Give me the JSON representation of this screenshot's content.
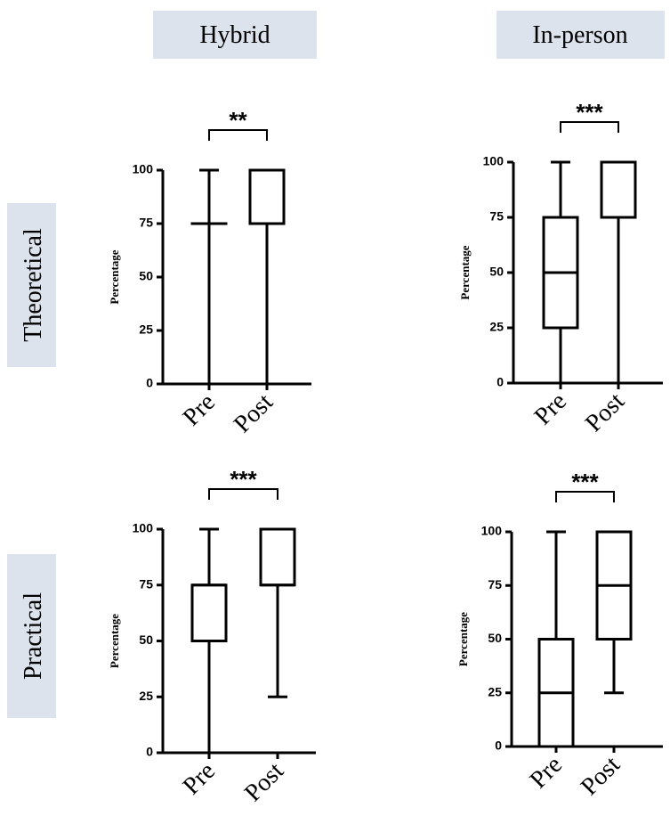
{
  "columns": [
    "Hybrid",
    "In-person"
  ],
  "rows": [
    "Theoretical",
    "Practical"
  ],
  "chart_data": [
    {
      "type": "box",
      "ylabel": "Percentage",
      "annotation": "**",
      "categories": [
        "Pre",
        "Post"
      ],
      "boxes": [
        {
          "min": 0,
          "q1": 75,
          "median": 75,
          "q3": 75,
          "max": 100
        },
        {
          "min": 0,
          "q1": 75,
          "median": 75,
          "q3": 100,
          "max": 100
        }
      ],
      "ylim": [
        0,
        100
      ],
      "yticks": [
        0,
        25,
        50,
        75,
        100
      ],
      "color": "#000000"
    },
    {
      "type": "box",
      "ylabel": "Percentage",
      "annotation": "***",
      "categories": [
        "Pre",
        "Post"
      ],
      "boxes": [
        {
          "min": 0,
          "q1": 25,
          "median": 50,
          "q3": 75,
          "max": 100
        },
        {
          "min": 0,
          "q1": 75,
          "median": 75,
          "q3": 100,
          "max": 100
        }
      ],
      "ylim": [
        0,
        100
      ],
      "yticks": [
        0,
        25,
        50,
        75,
        100
      ],
      "color": "#000000"
    },
    {
      "type": "box",
      "ylabel": "Percentage",
      "annotation": "***",
      "categories": [
        "Pre",
        "Post"
      ],
      "boxes": [
        {
          "min": 0,
          "q1": 50,
          "median": 75,
          "q3": 75,
          "max": 100
        },
        {
          "min": 25,
          "q1": 75,
          "median": 75,
          "q3": 100,
          "max": 100
        }
      ],
      "ylim": [
        0,
        100
      ],
      "yticks": [
        0,
        25,
        50,
        75,
        100
      ],
      "color": "#000000"
    },
    {
      "type": "box",
      "ylabel": "Percentage",
      "annotation": "***",
      "categories": [
        "Pre",
        "Post"
      ],
      "boxes": [
        {
          "min": 0,
          "q1": 0,
          "median": 25,
          "q3": 50,
          "max": 100
        },
        {
          "min": 25,
          "q1": 50,
          "median": 75,
          "q3": 100,
          "max": 100
        }
      ],
      "ylim": [
        0,
        100
      ],
      "yticks": [
        0,
        25,
        50,
        75,
        100
      ],
      "color": "#000000"
    }
  ]
}
